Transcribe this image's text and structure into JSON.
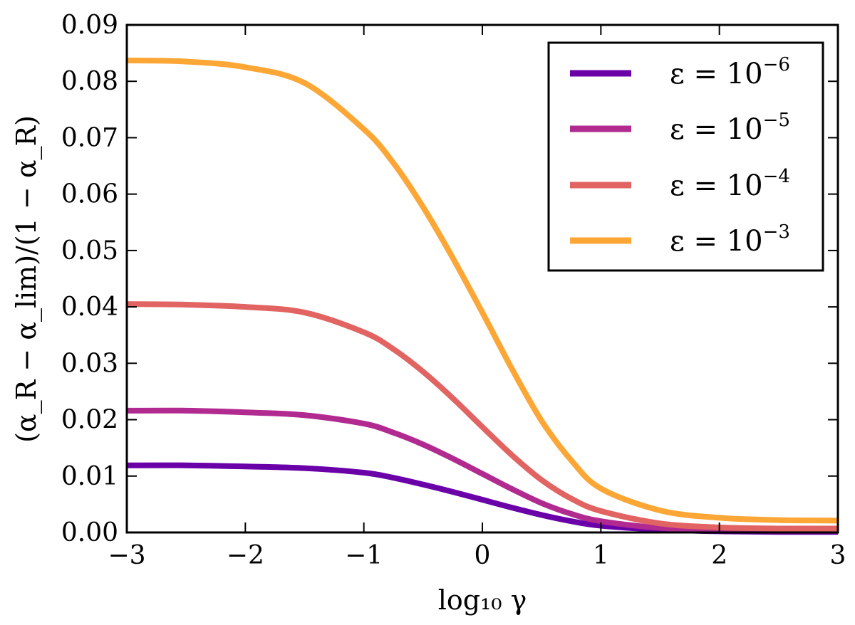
{
  "chart_data": {
    "type": "line",
    "xlabel": "log₁₀ γ",
    "ylabel": "(α_R − α_lim)/(1 − α_R)",
    "xlim": [
      -3,
      3
    ],
    "ylim": [
      0,
      0.09
    ],
    "xticks": [
      -3,
      -2,
      -1,
      0,
      1,
      2,
      3
    ],
    "xtick_labels": [
      "−3",
      "−2",
      "−1",
      "0",
      "1",
      "2",
      "3"
    ],
    "yticks": [
      0,
      0.01,
      0.02,
      0.03,
      0.04,
      0.05,
      0.06,
      0.07,
      0.08,
      0.09
    ],
    "ytick_labels": [
      "0.00",
      "0.01",
      "0.02",
      "0.03",
      "0.04",
      "0.05",
      "0.06",
      "0.07",
      "0.08",
      "0.09"
    ],
    "legend_position": "top-right",
    "grid": false,
    "x": [
      -3,
      -2.5,
      -2,
      -1.5,
      -1,
      -0.75,
      -0.5,
      -0.25,
      0,
      0.25,
      0.5,
      0.75,
      1,
      1.5,
      2,
      2.5,
      3
    ],
    "series": [
      {
        "name": "ε = 10⁻⁶",
        "legend_base": "ε = 10",
        "legend_exp": "−6",
        "color": "#6a00a8",
        "values": [
          0.0119,
          0.0119,
          0.0117,
          0.0114,
          0.0106,
          0.0097,
          0.0085,
          0.0072,
          0.0058,
          0.0044,
          0.0031,
          0.002,
          0.0012,
          0.0005,
          0.0002,
          0.0001,
          0.0001
        ]
      },
      {
        "name": "ε = 10⁻⁵",
        "legend_base": "ε = 10",
        "legend_exp": "−5",
        "color": "#b12a90",
        "values": [
          0.0216,
          0.0216,
          0.0213,
          0.0208,
          0.0193,
          0.0177,
          0.0156,
          0.0131,
          0.0104,
          0.0077,
          0.0052,
          0.0033,
          0.002,
          0.0008,
          0.0004,
          0.0003,
          0.0003
        ]
      },
      {
        "name": "ε = 10⁻⁴",
        "legend_base": "ε = 10",
        "legend_exp": "−4",
        "color": "#e16462",
        "values": [
          0.0405,
          0.0404,
          0.04,
          0.039,
          0.0355,
          0.0325,
          0.0285,
          0.0238,
          0.0187,
          0.0137,
          0.0093,
          0.006,
          0.0038,
          0.0016,
          0.0009,
          0.0007,
          0.0007
        ]
      },
      {
        "name": "ε = 10⁻³",
        "legend_base": "ε = 10",
        "legend_exp": "−3",
        "color": "#fca636",
        "values": [
          0.0837,
          0.0835,
          0.0825,
          0.0797,
          0.0715,
          0.0655,
          0.0577,
          0.0487,
          0.039,
          0.029,
          0.0198,
          0.0128,
          0.0078,
          0.0039,
          0.0026,
          0.0022,
          0.0021
        ]
      }
    ]
  }
}
